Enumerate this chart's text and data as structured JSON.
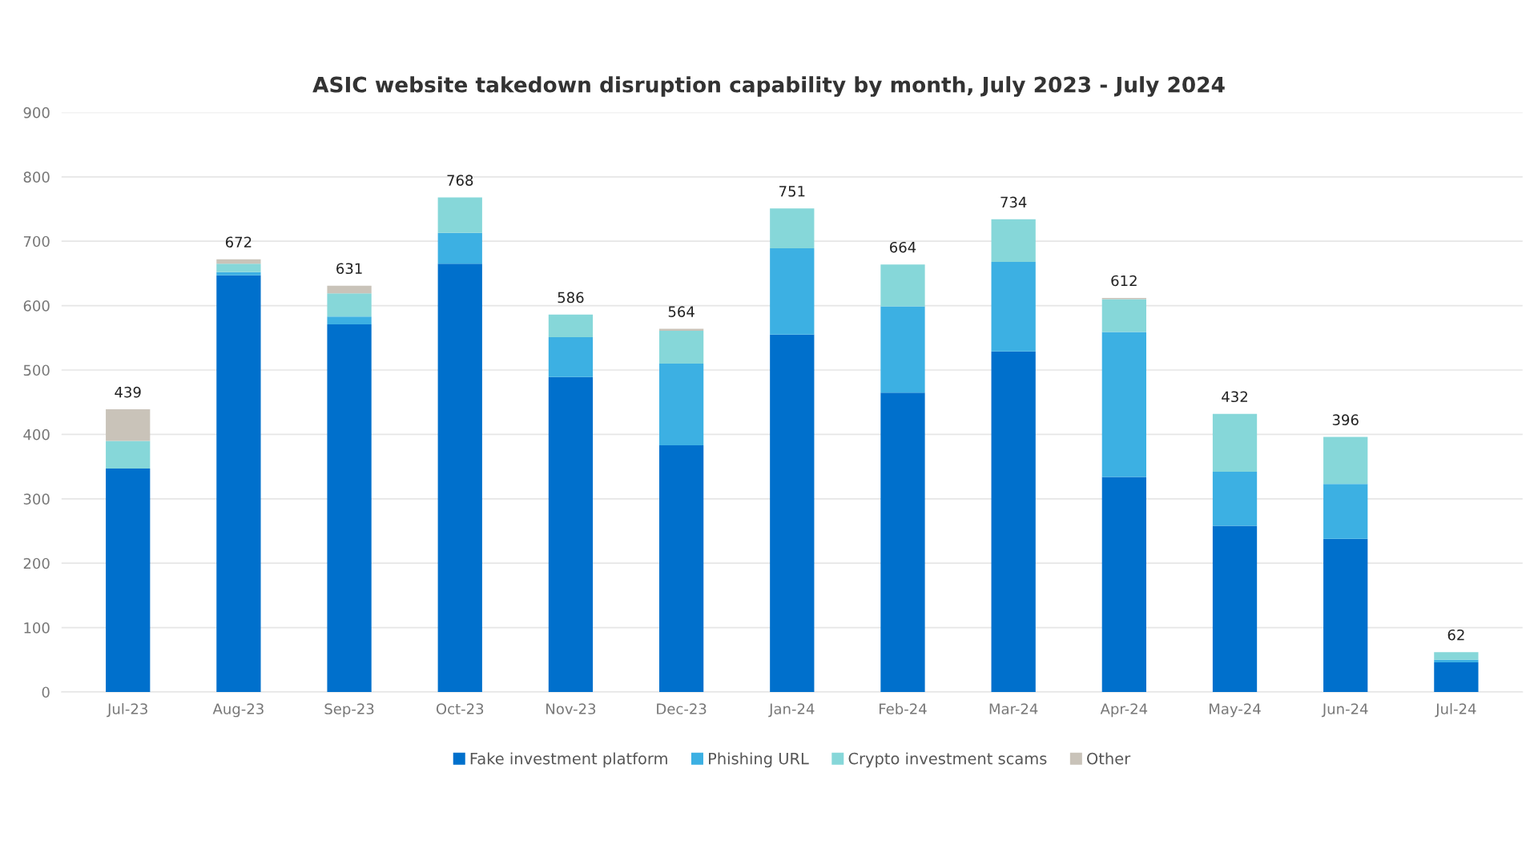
{
  "chart_data": {
    "type": "bar",
    "title": "ASIC website takedown disruption capability by month, July 2023 - July 2024",
    "categories": [
      "Jul-23",
      "Aug-23",
      "Sep-23",
      "Oct-23",
      "Nov-23",
      "Dec-23",
      "Jan-24",
      "Feb-24",
      "Mar-24",
      "Apr-24",
      "May-24",
      "Jun-24",
      "Jul-24"
    ],
    "stacked": true,
    "series": [
      {
        "name": "Fake investment platform",
        "color": "#0070cc",
        "values": [
          347,
          647,
          571,
          665,
          489,
          383,
          555,
          465,
          529,
          334,
          258,
          238,
          46
        ]
      },
      {
        "name": "Phishing URL",
        "color": "#3cb0e3",
        "values": [
          0,
          5,
          12,
          48,
          62,
          127,
          134,
          134,
          139,
          225,
          84,
          85,
          4
        ]
      },
      {
        "name": "Crypto investment scams",
        "color": "#86d7d9",
        "values": [
          43,
          13,
          36,
          55,
          35,
          51,
          62,
          65,
          66,
          51,
          90,
          73,
          12
        ]
      },
      {
        "name": "Other",
        "color": "#c9c3b9",
        "values": [
          49,
          7,
          12,
          null,
          0,
          3,
          0,
          0,
          0,
          2,
          0,
          0,
          0
        ]
      }
    ],
    "totals": [
      "439",
      "672",
      "631",
      "768",
      "586",
      "564",
      "751",
      "664",
      "734",
      "612",
      "432",
      "396",
      "62"
    ],
    "ylim": [
      0,
      900
    ],
    "yticks": [
      0,
      100,
      200,
      300,
      400,
      500,
      600,
      700,
      800,
      900
    ],
    "grid": "y",
    "legend": "bottom"
  }
}
